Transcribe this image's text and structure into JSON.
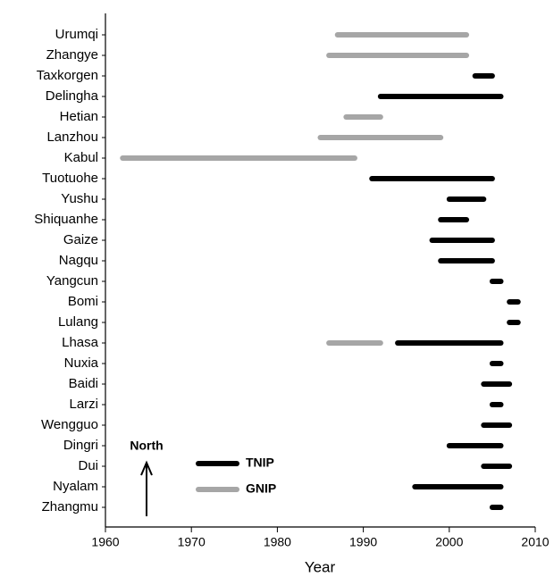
{
  "chart_data": {
    "type": "range",
    "categories": [
      "Urumqi",
      "Zhangye",
      "Taxkorgen",
      "Delingha",
      "Hetian",
      "Lanzhou",
      "Kabul",
      "Tuotuohe",
      "Yushu",
      "Shiquanhe",
      "Gaize",
      "Nagqu",
      "Yangcun",
      "Bomi",
      "Lulang",
      "Lhasa",
      "Nuxia",
      "Baidi",
      "Larzi",
      "Wengguo",
      "Dingri",
      "Dui",
      "Nyalam",
      "Zhangmu"
    ],
    "series": [
      {
        "name": "TNIP",
        "color": "#000000",
        "values": [
          null,
          null,
          [
            2003,
            2005
          ],
          [
            1992,
            2006
          ],
          null,
          null,
          null,
          [
            1991,
            2005
          ],
          [
            2000,
            2004
          ],
          [
            1999,
            2002
          ],
          [
            1998,
            2005
          ],
          [
            1999,
            2005
          ],
          [
            2005,
            2006
          ],
          [
            2007,
            2008
          ],
          [
            2007,
            2008
          ],
          [
            1994,
            2006
          ],
          [
            2005,
            2006
          ],
          [
            2004,
            2007
          ],
          [
            2005,
            2006
          ],
          [
            2004,
            2007
          ],
          [
            2000,
            2006
          ],
          [
            2004,
            2007
          ],
          [
            1996,
            2006
          ],
          [
            2005,
            2006
          ]
        ]
      },
      {
        "name": "GNIP",
        "color": "#a6a6a6",
        "values": [
          [
            1987,
            2002
          ],
          [
            1986,
            2002
          ],
          null,
          null,
          [
            1988,
            1992
          ],
          [
            1985,
            1999
          ],
          [
            1962,
            1989
          ],
          null,
          null,
          null,
          null,
          null,
          null,
          null,
          null,
          [
            1986,
            1992
          ],
          null,
          null,
          null,
          null,
          null,
          null,
          null,
          null
        ]
      }
    ],
    "xlabel": "Year",
    "xlim": [
      1960,
      2010
    ],
    "xticks": [
      1960,
      1970,
      1980,
      1990,
      2000,
      2010
    ],
    "legend": "lower left",
    "annotation": "North"
  }
}
